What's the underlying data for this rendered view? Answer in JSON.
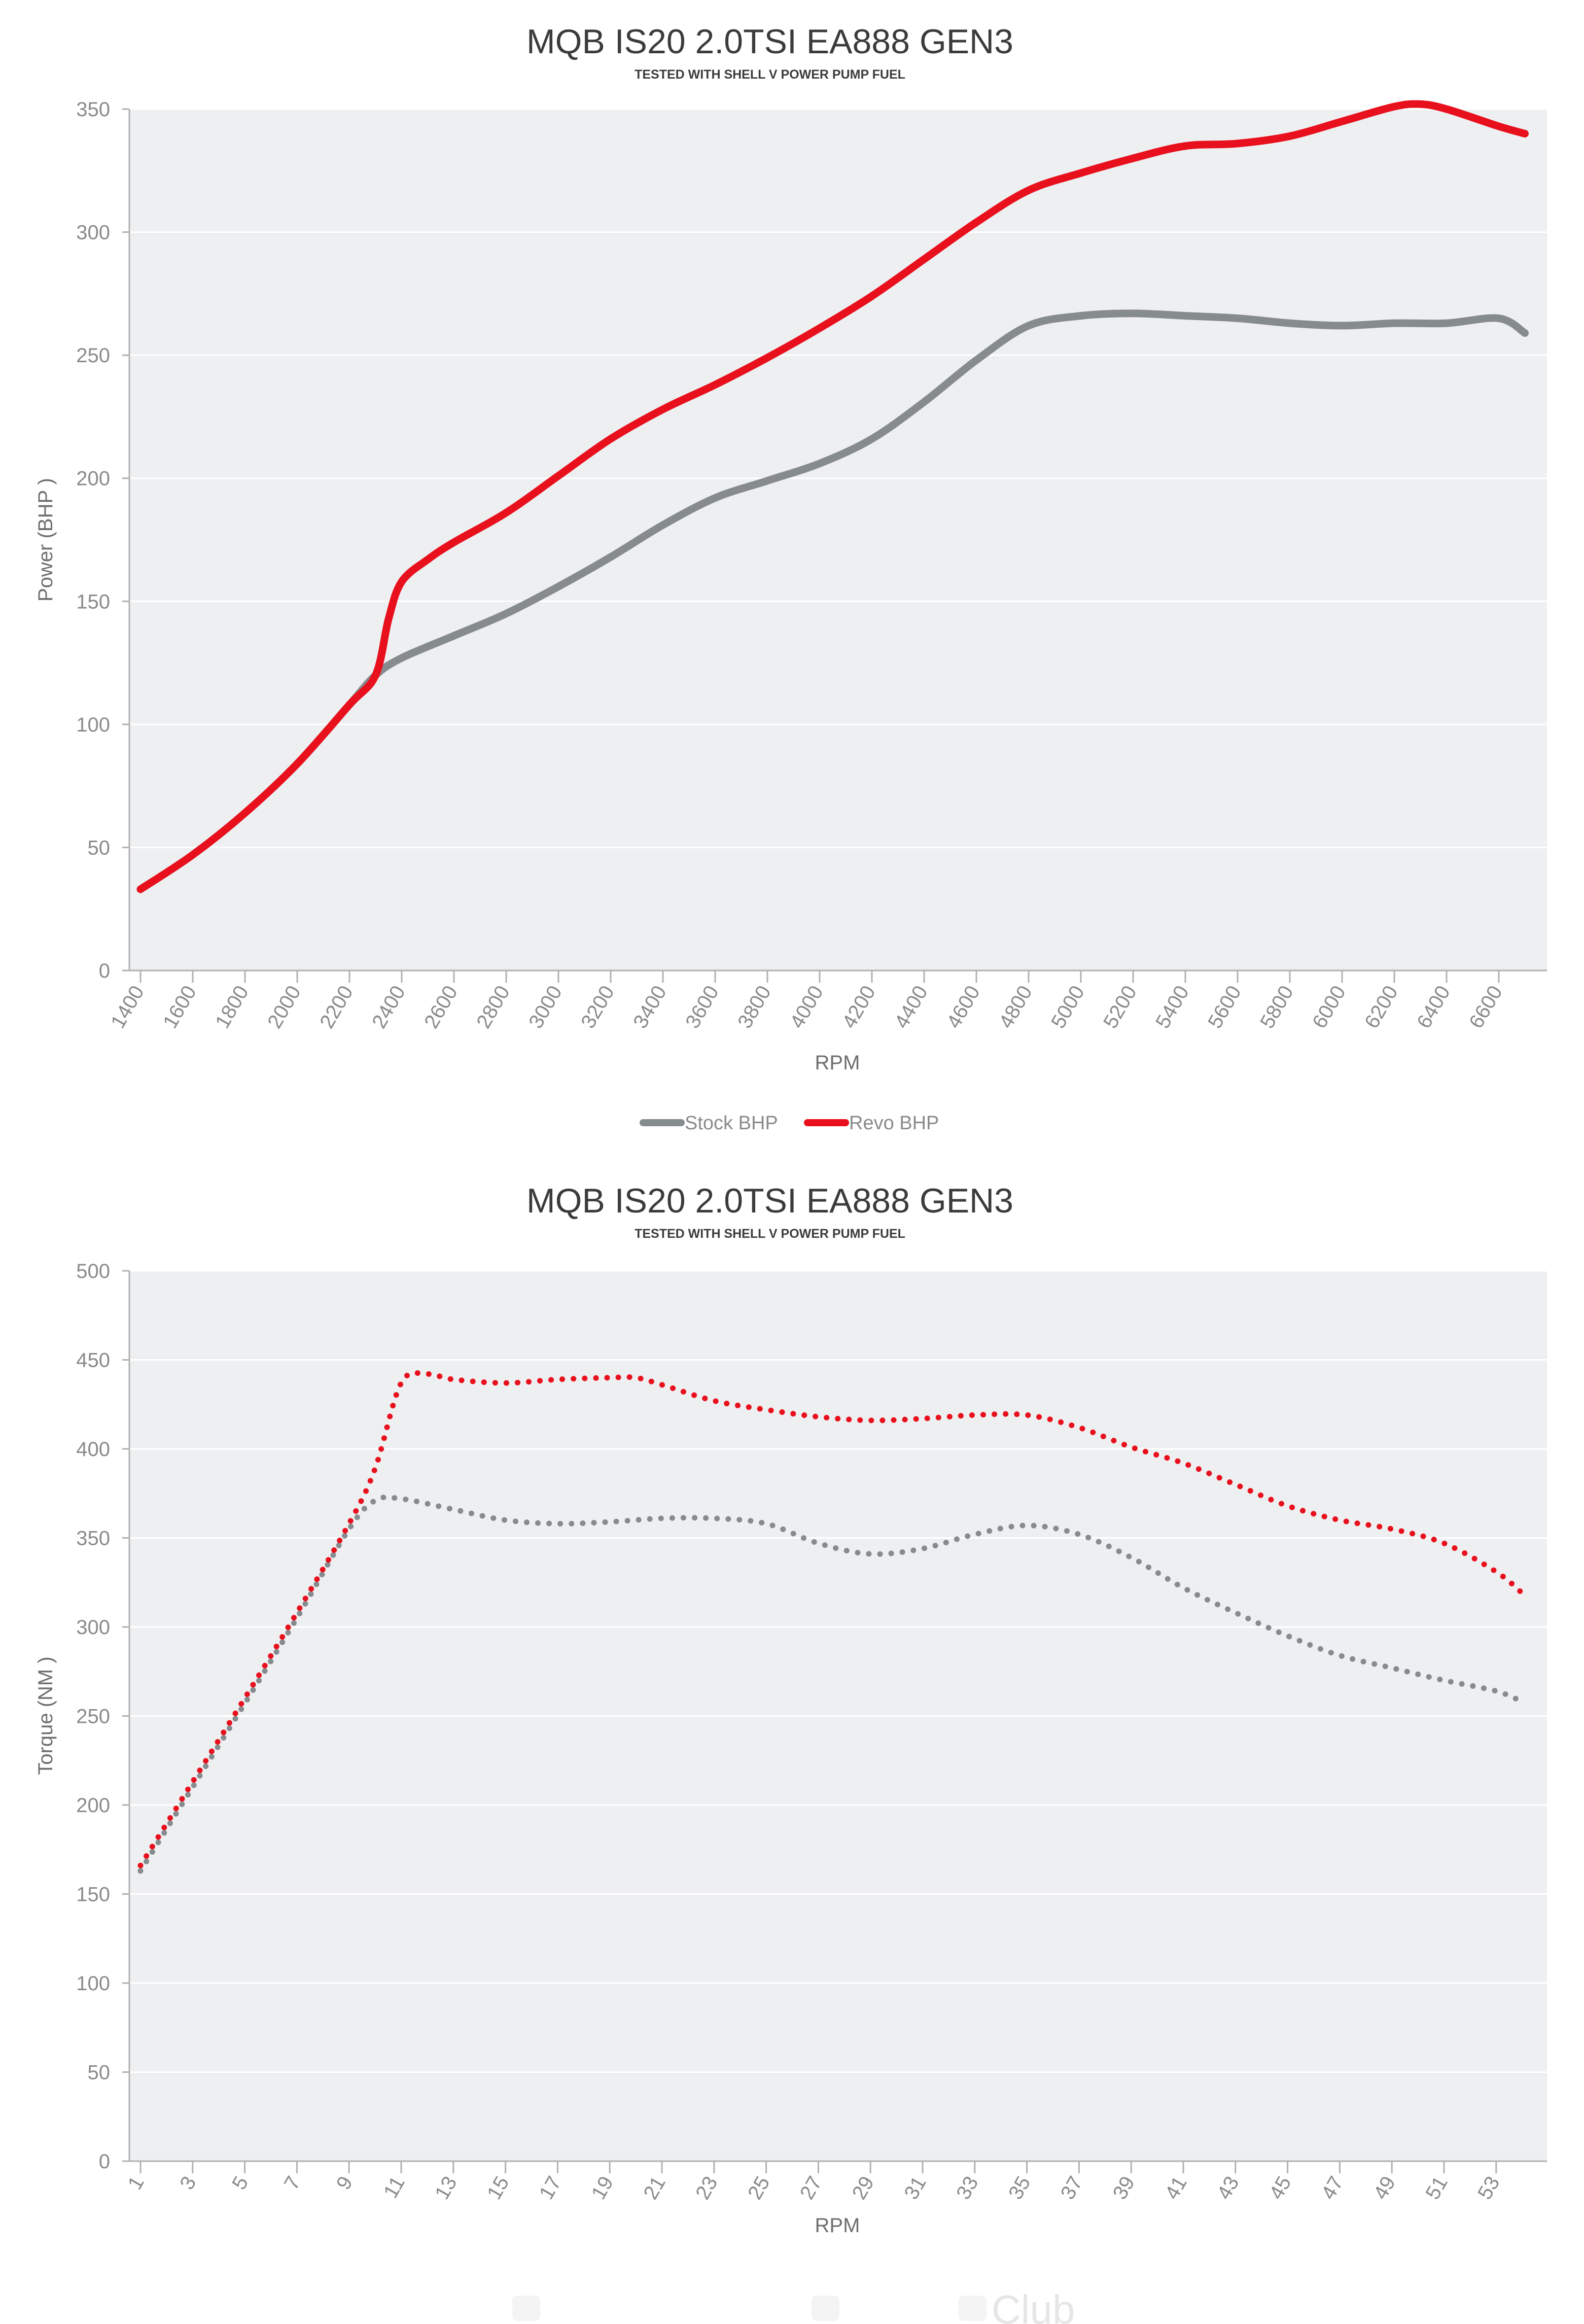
{
  "watermark": "Club",
  "chart_data": [
    {
      "type": "line",
      "title": "MQB IS20 2.0TSI EA888  GEN3",
      "subtitle": "TESTED WITH SHELL V POWER PUMP FUEL",
      "xlabel": "RPM",
      "ylabel": "Power (BHP )",
      "ylim": [
        0,
        350
      ],
      "yticks": [
        0,
        50,
        100,
        150,
        200,
        250,
        300,
        350
      ],
      "xticks": [
        "1400",
        "1600",
        "1800",
        "2000",
        "2200",
        "2400",
        "2600",
        "2800",
        "3000",
        "3200",
        "3400",
        "3600",
        "3800",
        "4000",
        "4200",
        "4400",
        "4600",
        "4800",
        "5000",
        "5200",
        "5400",
        "5600",
        "5800",
        "6000",
        "6200",
        "6400",
        "6600"
      ],
      "xlim": [
        1400,
        6800
      ],
      "grid": true,
      "legend": "bottom-center",
      "line_style": "solid",
      "series": [
        {
          "name": "Stock BHP",
          "color": "#868b8e",
          "x": [
            1400,
            1600,
            1800,
            2000,
            2200,
            2300,
            2400,
            2600,
            2800,
            3000,
            3200,
            3400,
            3600,
            3800,
            4000,
            4200,
            4400,
            4600,
            4800,
            5000,
            5200,
            5400,
            5600,
            5800,
            6000,
            6200,
            6400,
            6600,
            6700
          ],
          "y": [
            33,
            47,
            64,
            84,
            108,
            120,
            127,
            136,
            145,
            156,
            168,
            181,
            192,
            199,
            206,
            216,
            231,
            248,
            262,
            266,
            267,
            266,
            265,
            263,
            262,
            263,
            263,
            265,
            259
          ]
        },
        {
          "name": "Revo BHP",
          "color": "#e8101c",
          "x": [
            1400,
            1600,
            1800,
            2000,
            2200,
            2300,
            2350,
            2400,
            2500,
            2600,
            2800,
            3000,
            3200,
            3400,
            3600,
            3800,
            4000,
            4200,
            4400,
            4600,
            4800,
            5000,
            5200,
            5400,
            5600,
            5800,
            6000,
            6200,
            6300,
            6400,
            6600,
            6700
          ],
          "y": [
            33,
            47,
            64,
            84,
            108,
            120,
            143,
            158,
            167,
            174,
            186,
            201,
            216,
            228,
            238,
            249,
            261,
            274,
            289,
            304,
            317,
            324,
            330,
            335,
            336,
            339,
            345,
            351,
            352,
            350,
            343,
            340
          ]
        }
      ]
    },
    {
      "type": "line",
      "title": "MQB IS20 2.0TSI EA888  GEN3",
      "subtitle": "TESTED WITH SHELL V POWER PUMP FUEL",
      "xlabel": "RPM",
      "ylabel": "Torque (NM )",
      "ylim": [
        0,
        500
      ],
      "yticks": [
        0,
        50,
        100,
        150,
        200,
        250,
        300,
        350,
        400,
        450,
        500
      ],
      "xticks": [
        "1",
        "3",
        "5",
        "7",
        "9",
        "11",
        "13",
        "15",
        "17",
        "19",
        "21",
        "23",
        "25",
        "27",
        "29",
        "31",
        "33",
        "35",
        "37",
        "39",
        "41",
        "43",
        "45",
        "47",
        "49",
        "51",
        "53"
      ],
      "xlim": [
        1,
        55
      ],
      "grid": true,
      "line_style": "dotted",
      "series": [
        {
          "color": "#868b8e",
          "x": [
            1,
            3,
            5,
            7,
            9,
            10,
            11,
            13,
            15,
            17,
            19,
            21,
            23,
            25,
            27,
            29,
            31,
            33,
            35,
            37,
            39,
            41,
            43,
            45,
            47,
            49,
            51,
            53,
            54
          ],
          "y": [
            163,
            210,
            257,
            305,
            355,
            371,
            372,
            366,
            360,
            358,
            359,
            361,
            361,
            358,
            347,
            341,
            344,
            352,
            357,
            352,
            339,
            322,
            308,
            295,
            284,
            277,
            270,
            264,
            258
          ]
        },
        {
          "color": "#e8101c",
          "x": [
            1,
            3,
            5,
            7,
            9,
            10,
            11,
            12,
            13,
            15,
            17,
            19,
            20,
            21,
            23,
            25,
            27,
            29,
            31,
            33,
            35,
            37,
            39,
            41,
            43,
            45,
            47,
            49,
            51,
            53,
            54
          ],
          "y": [
            166,
            213,
            260,
            308,
            358,
            389,
            437,
            442,
            439,
            437,
            439,
            440,
            440,
            436,
            427,
            422,
            418,
            416,
            417,
            419,
            419,
            412,
            401,
            392,
            380,
            368,
            360,
            355,
            347,
            331,
            319
          ]
        }
      ]
    }
  ]
}
